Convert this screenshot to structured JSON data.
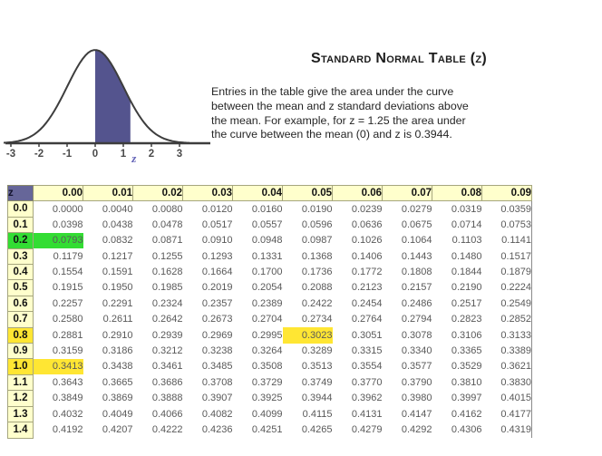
{
  "title": "Standard Normal Table (z)",
  "desc": {
    "lines": [
      "Entries in the table give the area under the curve",
      "between the mean and z standard deviations above",
      "the mean. For example, for z = 1.25 the area under",
      "the curve between the mean (0)  and z  is 0.3944."
    ]
  },
  "curve": {
    "tick_labels": [
      "-3",
      "-2",
      "-1",
      "0",
      "1",
      "2",
      "3"
    ],
    "tick_values": [
      -3,
      -2,
      -1,
      0,
      1,
      2,
      3
    ],
    "z_marker_label": "z",
    "shade_from": 0,
    "shade_to": 1.25,
    "fill_color": "#54548E",
    "stroke_color": "#3d3d3d",
    "axis_label_color": "#4a4a4a",
    "z_label_color": "#6565b8"
  },
  "table": {
    "corner_label": "z",
    "columns": [
      "0.00",
      "0.01",
      "0.02",
      "0.03",
      "0.04",
      "0.05",
      "0.06",
      "0.07",
      "0.08",
      "0.09"
    ],
    "rows": [
      {
        "z": "0.0",
        "values": [
          "0.0000",
          "0.0040",
          "0.0080",
          "0.0120",
          "0.0160",
          "0.0190",
          "0.0239",
          "0.0279",
          "0.0319",
          "0.0359"
        ]
      },
      {
        "z": "0.1",
        "values": [
          "0.0398",
          "0.0438",
          "0.0478",
          "0.0517",
          "0.0557",
          "0.0596",
          "0.0636",
          "0.0675",
          "0.0714",
          "0.0753"
        ]
      },
      {
        "z": "0.2",
        "values": [
          "0.0793",
          "0.0832",
          "0.0871",
          "0.0910",
          "0.0948",
          "0.0987",
          "0.1026",
          "0.1064",
          "0.1103",
          "0.1141"
        ]
      },
      {
        "z": "0.3",
        "values": [
          "0.1179",
          "0.1217",
          "0.1255",
          "0.1293",
          "0.1331",
          "0.1368",
          "0.1406",
          "0.1443",
          "0.1480",
          "0.1517"
        ]
      },
      {
        "z": "0.4",
        "values": [
          "0.1554",
          "0.1591",
          "0.1628",
          "0.1664",
          "0.1700",
          "0.1736",
          "0.1772",
          "0.1808",
          "0.1844",
          "0.1879"
        ]
      },
      {
        "z": "0.5",
        "values": [
          "0.1915",
          "0.1950",
          "0.1985",
          "0.2019",
          "0.2054",
          "0.2088",
          "0.2123",
          "0.2157",
          "0.2190",
          "0.2224"
        ]
      },
      {
        "z": "0.6",
        "values": [
          "0.2257",
          "0.2291",
          "0.2324",
          "0.2357",
          "0.2389",
          "0.2422",
          "0.2454",
          "0.2486",
          "0.2517",
          "0.2549"
        ]
      },
      {
        "z": "0.7",
        "values": [
          "0.2580",
          "0.2611",
          "0.2642",
          "0.2673",
          "0.2704",
          "0.2734",
          "0.2764",
          "0.2794",
          "0.2823",
          "0.2852"
        ]
      },
      {
        "z": "0.8",
        "values": [
          "0.2881",
          "0.2910",
          "0.2939",
          "0.2969",
          "0.2995",
          "0.3023",
          "0.3051",
          "0.3078",
          "0.3106",
          "0.3133"
        ]
      },
      {
        "z": "0.9",
        "values": [
          "0.3159",
          "0.3186",
          "0.3212",
          "0.3238",
          "0.3264",
          "0.3289",
          "0.3315",
          "0.3340",
          "0.3365",
          "0.3389"
        ]
      },
      {
        "z": "1.0",
        "values": [
          "0.3413",
          "0.3438",
          "0.3461",
          "0.3485",
          "0.3508",
          "0.3513",
          "0.3554",
          "0.3577",
          "0.3529",
          "0.3621"
        ]
      },
      {
        "z": "1.1",
        "values": [
          "0.3643",
          "0.3665",
          "0.3686",
          "0.3708",
          "0.3729",
          "0.3749",
          "0.3770",
          "0.3790",
          "0.3810",
          "0.3830"
        ]
      },
      {
        "z": "1.2",
        "values": [
          "0.3849",
          "0.3869",
          "0.3888",
          "0.3907",
          "0.3925",
          "0.3944",
          "0.3962",
          "0.3980",
          "0.3997",
          "0.4015"
        ]
      },
      {
        "z": "1.3",
        "values": [
          "0.4032",
          "0.4049",
          "0.4066",
          "0.4082",
          "0.4099",
          "0.4115",
          "0.4131",
          "0.4147",
          "0.4162",
          "0.4177"
        ]
      },
      {
        "z": "1.4",
        "values": [
          "0.4192",
          "0.4207",
          "0.4222",
          "0.4236",
          "0.4251",
          "0.4265",
          "0.4279",
          "0.4292",
          "0.4306",
          "0.4319"
        ]
      }
    ],
    "highlights": [
      {
        "row": "0.2",
        "col": "label",
        "color": "green"
      },
      {
        "row": "0.2",
        "col": "0.00",
        "color": "green"
      },
      {
        "row": "0.8",
        "col": "label",
        "color": "yellow"
      },
      {
        "row": "0.8",
        "col": "0.05",
        "color": "yellow"
      },
      {
        "row": "1.0",
        "col": "label",
        "color": "yellow"
      },
      {
        "row": "1.0",
        "col": "0.00",
        "color": "yellow"
      }
    ],
    "header_bg": "#ffffcc",
    "corner_bg": "#666699",
    "highlight_green": "#33dd33",
    "highlight_yellow": "#ffe633"
  }
}
